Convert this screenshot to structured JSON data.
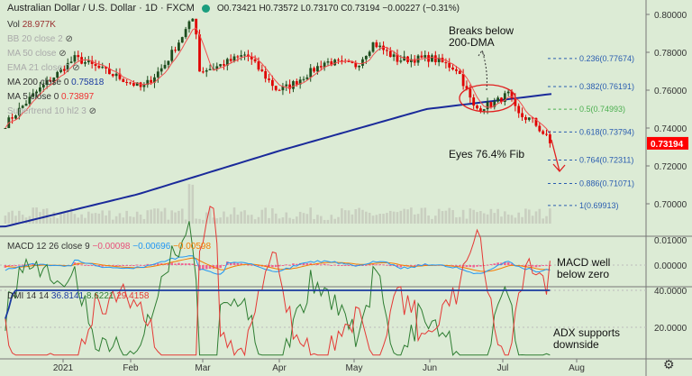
{
  "header": {
    "title": "Australian Dollar / U.S. Dollar · 1D · FXCM",
    "open": "O0.73421",
    "high": "H0.73572",
    "low": "L0.73170",
    "close": "C0.73194",
    "change": "−0.00227 (−0.31%)"
  },
  "legend": {
    "vol_label": "Vol",
    "vol_value": "28.977K",
    "bb": "BB 20 close 2",
    "ma50": "MA 50 close",
    "ema21": "EMA 21 close 0",
    "ma200": "MA 200 close 0",
    "ma200_value": "0.75818",
    "ma5": "MA 5 close 0",
    "ma5_value": "0.73897",
    "supertrend": "Supertrend 10 hl2 3",
    "macd": "MACD 12 26 close 9",
    "macd_hist": "−0.00098",
    "macd_line": "−0.00696",
    "macd_signal": "−0.00598",
    "dmi": "DMI 14 14",
    "dmi_adx": "36.8141",
    "dmi_plus": "8.6221",
    "dmi_minus": "29.4158"
  },
  "annotations": {
    "breaks": "Breaks below 200-DMA",
    "eyes": "Eyes 76.4% Fib",
    "macd": "MACD well below zero",
    "adx": "ADX supports downside"
  },
  "colors": {
    "bg": "#dcebd5",
    "up": "#1e4d1e",
    "down": "#e00000",
    "ma200": "#1a2a9a",
    "ma5": "#f05050",
    "fib": "#2a5db0",
    "fib_mid": "#4caf50",
    "last_price": "#ff0000"
  },
  "chart_data": [
    {
      "type": "candlestick",
      "title": "Australian Dollar / U.S. Dollar · 1D · FXCM",
      "price_ticks": [
        "0.80000",
        "0.78000",
        "0.76000",
        "0.74000",
        "0.72000",
        "0.70000"
      ],
      "ylim": [
        0.685,
        0.8
      ],
      "last_price": "0.73194",
      "time_ticks": [
        "2021",
        "Feb",
        "Mar",
        "Apr",
        "May",
        "Jun",
        "Jul",
        "Aug"
      ],
      "close_keypoints": [
        [
          "2020-12-08",
          0.742
        ],
        [
          "2020-12-20",
          0.758
        ],
        [
          "2021-01-06",
          0.777
        ],
        [
          "2021-01-15",
          0.772
        ],
        [
          "2021-01-29",
          0.764
        ],
        [
          "2021-02-03",
          0.761
        ],
        [
          "2021-02-12",
          0.773
        ],
        [
          "2021-02-25",
          0.8
        ],
        [
          "2021-02-26",
          0.77
        ],
        [
          "2021-03-05",
          0.772
        ],
        [
          "2021-03-18",
          0.779
        ],
        [
          "2021-03-31",
          0.76
        ],
        [
          "2021-04-05",
          0.762
        ],
        [
          "2021-04-20",
          0.775
        ],
        [
          "2021-05-03",
          0.773
        ],
        [
          "2021-05-10",
          0.785
        ],
        [
          "2021-05-20",
          0.776
        ],
        [
          "2021-06-03",
          0.777
        ],
        [
          "2021-06-14",
          0.771
        ],
        [
          "2021-06-21",
          0.75
        ],
        [
          "2021-06-29",
          0.753
        ],
        [
          "2021-07-05",
          0.758
        ],
        [
          "2021-07-09",
          0.747
        ],
        [
          "2021-07-15",
          0.744
        ],
        [
          "2021-07-21",
          0.735
        ],
        [
          "2021-07-23",
          0.7319
        ]
      ],
      "ma200_keypoints": [
        [
          "2020-12-08",
          0.688
        ],
        [
          "2021-02-01",
          0.705
        ],
        [
          "2021-04-01",
          0.728
        ],
        [
          "2021-06-01",
          0.75
        ],
        [
          "2021-07-23",
          0.758
        ]
      ],
      "fib_levels": [
        {
          "label": "0.236(0.77674)",
          "value": 0.77674
        },
        {
          "label": "0.382(0.76191)",
          "value": 0.76191
        },
        {
          "label": "0.5(0.74993)",
          "value": 0.74993
        },
        {
          "label": "0.618(0.73794)",
          "value": 0.73794
        },
        {
          "label": "0.764(0.72311)",
          "value": 0.72311
        },
        {
          "label": "0.886(0.71071)",
          "value": 0.71071
        },
        {
          "label": "1(0.69913)",
          "value": 0.69913
        }
      ]
    },
    {
      "type": "line",
      "title": "MACD 12 26 close 9",
      "price_ticks": [
        "0.01000",
        "0.00000"
      ],
      "ylim": [
        -0.008,
        0.012
      ]
    },
    {
      "type": "line",
      "title": "DMI 14 14",
      "price_ticks": [
        "40.0000",
        "20.0000"
      ],
      "ylim": [
        0,
        42
      ]
    }
  ]
}
